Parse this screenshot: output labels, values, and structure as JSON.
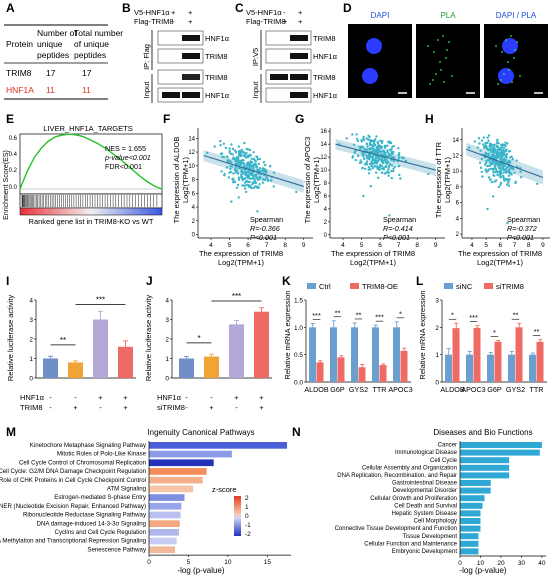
{
  "panels": {
    "A": {
      "letter": "A",
      "header": [
        "Protein",
        "Number of unique peptides",
        "Total number of unique peptides"
      ],
      "rows": [
        {
          "protein": "TRIM8",
          "unique": "17",
          "total": "17",
          "color": "#111111"
        },
        {
          "protein": "HNF1A",
          "unique": "11",
          "total": "11",
          "color": "#d9331f"
        }
      ]
    },
    "B": {
      "letter": "B",
      "conditions": [
        {
          "label": "V5-HNF1α",
          "values": [
            "+",
            "+"
          ]
        },
        {
          "label": "Flag-TRIM8",
          "values": [
            "-",
            "+"
          ]
        }
      ],
      "ip_label": "IP: Flag",
      "input_label": "Input",
      "bands": [
        "HNF1α",
        "TRIM8",
        "TRIM8",
        "HNF1α"
      ]
    },
    "C": {
      "letter": "C",
      "conditions": [
        {
          "label": "V5-HNF1α",
          "values": [
            "-",
            "+"
          ]
        },
        {
          "label": "Flag-TRIM8",
          "values": [
            "+",
            "+"
          ]
        }
      ],
      "ip_label": "IP:V5",
      "input_label": "Input",
      "bands": [
        "TRIM8",
        "HNF1α",
        "TRIM8",
        "HNF1α"
      ]
    },
    "D": {
      "letter": "D",
      "titles": [
        "DAPI",
        "PLA",
        "DAPI / PLA"
      ],
      "title_colors": [
        "#1a4fd8",
        "#1e9e2f",
        "#1a4fd8"
      ]
    },
    "E": {
      "letter": "E",
      "title": "LIVER_HNF1A_TARGETS",
      "stats": [
        "NES = 1.655",
        "p-value<0.001",
        "FDR<0.001"
      ],
      "ylabel": "Enrichment Score(ES)",
      "yticks": [
        "0.6",
        "0.4",
        "0.2",
        "0.0"
      ],
      "xlabel": "Ranked gene list in TRIM8-KO vs WT"
    },
    "F": {
      "letter": "F",
      "ylabel1": "The expression of ALDOB",
      "ylabel2": "Log2(TPM+1)",
      "xlabel1": "The expression of TRIM8",
      "xlabel2": "Log2(TPM+1)",
      "stats": [
        "Spearman",
        "R=-0.366",
        "P<0.001"
      ],
      "xticks": [
        "4",
        "5",
        "6",
        "7",
        "8",
        "9"
      ],
      "yticks": [
        "14",
        "12",
        "10",
        "8",
        "6",
        "4",
        "2",
        "0"
      ]
    },
    "G": {
      "letter": "G",
      "ylabel1": "The expression of APOC3",
      "ylabel2": "Log2(TPM+1)",
      "xlabel1": "The expression of TRIM8",
      "xlabel2": "Log2(TPM+1)",
      "stats": [
        "Spearman",
        "R=-0.414",
        "P<0.001"
      ],
      "xticks": [
        "4",
        "5",
        "6",
        "7",
        "8",
        "9"
      ],
      "yticks": [
        "16",
        "14",
        "12",
        "10",
        "8",
        "6",
        "4",
        "2",
        "0"
      ]
    },
    "H": {
      "letter": "H",
      "ylabel1": "The expression of TTR",
      "ylabel2": "Log2(TPM+1)",
      "xlabel1": "The expression of TRIM8",
      "xlabel2": "Log2(TPM+1)",
      "stats": [
        "Spearman",
        "R=-0.372",
        "P<0.001"
      ],
      "xticks": [
        "4",
        "5",
        "6",
        "7",
        "8",
        "9"
      ],
      "yticks": [
        "14",
        "12",
        "10",
        "8",
        "6",
        "4",
        "2"
      ]
    },
    "I": {
      "letter": "I",
      "ylabel": "Relative luciferase activity",
      "yticks": [
        "0",
        "1",
        "2",
        "3",
        "4"
      ],
      "row_labels": [
        "HNF1α",
        "TRIM8"
      ],
      "row_values": [
        [
          "-",
          "-",
          "+",
          "+"
        ],
        [
          "-",
          "+",
          "-",
          "+"
        ]
      ],
      "sig": [
        "**",
        "***"
      ]
    },
    "J": {
      "letter": "J",
      "ylabel": "Relative luciferase activity",
      "yticks": [
        "0",
        "1",
        "2",
        "3",
        "4"
      ],
      "row_labels": [
        "HNF1α",
        "siTRIM8"
      ],
      "row_values": [
        [
          "-",
          "-",
          "+",
          "+"
        ],
        [
          "-",
          "+",
          "-",
          "+"
        ]
      ],
      "sig": [
        "*",
        "***"
      ]
    },
    "K": {
      "letter": "K",
      "ylabel": "Relative mRNA expression",
      "yticks": [
        "0.0",
        "0.5",
        "1.0",
        "1.5"
      ],
      "legend": [
        "Ctrl",
        "TRIM8-OE"
      ],
      "sig": [
        "***",
        "**",
        "**",
        "***",
        "*"
      ]
    },
    "L": {
      "letter": "L",
      "ylabel": "Relative mRNA expression",
      "yticks": [
        "0",
        "1",
        "2",
        "3"
      ],
      "legend": [
        "siNC",
        "siTRIM8"
      ],
      "sig": [
        "*",
        "***",
        "*",
        "**",
        "**"
      ]
    },
    "M": {
      "letter": "M",
      "legend_title": "z-score",
      "legend_ticks": [
        "2",
        "1",
        "0",
        "-1",
        "-2"
      ]
    },
    "N": {
      "letter": "N"
    }
  },
  "chart_data": [
    {
      "panel": "E",
      "type": "line",
      "title": "LIVER_HNF1A_TARGETS",
      "ylabel": "Enrichment Score(ES)",
      "xlabel": "Ranked gene list in TRIM8-KO vs WT",
      "x": [
        0,
        0.05,
        0.1,
        0.15,
        0.2,
        0.25,
        0.3,
        0.35,
        0.4,
        0.45,
        0.5,
        0.55,
        0.6,
        0.65,
        0.7,
        0.75,
        0.8,
        0.85,
        0.9,
        0.95,
        1.0
      ],
      "y": [
        0.0,
        0.2,
        0.36,
        0.47,
        0.55,
        0.6,
        0.62,
        0.63,
        0.62,
        0.6,
        0.56,
        0.52,
        0.47,
        0.41,
        0.35,
        0.28,
        0.21,
        0.14,
        0.08,
        0.03,
        0.0
      ],
      "ylim": [
        -0.05,
        0.7
      ]
    },
    {
      "panel": "F",
      "type": "scatter",
      "xlabel": "The expression of TRIM8 Log2(TPM+1)",
      "ylabel": "The expression of ALDOB Log2(TPM+1)",
      "xlim": [
        3.3,
        9.5
      ],
      "ylim": [
        -0.5,
        15.5
      ],
      "fit": {
        "x": [
          3.6,
          9.0
        ],
        "y": [
          11.5,
          7.0
        ]
      },
      "x": [
        4.6,
        5.0,
        5.2,
        5.4,
        5.6,
        5.8,
        6.0,
        6.2,
        6.4,
        5.1,
        5.5,
        5.9,
        6.3,
        4.9,
        5.3,
        5.7,
        6.1,
        6.6,
        4.8,
        5.2,
        5.6,
        6.0,
        6.8,
        5.4,
        5.8,
        6.2,
        5.0,
        5.6,
        6.4,
        7.0,
        4.5,
        5.9,
        6.1,
        5.3,
        5.5,
        4.2,
        7.4,
        3.8,
        8.6,
        5.1,
        6.5
      ],
      "y": [
        11.8,
        12.5,
        11.0,
        10.2,
        12.0,
        9.8,
        10.5,
        9.0,
        8.6,
        13.1,
        12.8,
        11.2,
        10.0,
        10.8,
        9.5,
        8.8,
        12.3,
        9.2,
        12.6,
        7.6,
        11.4,
        8.2,
        8.0,
        6.8,
        13.3,
        11.0,
        9.0,
        10.4,
        7.5,
        8.4,
        13.6,
        6.2,
        11.6,
        12.2,
        5.4,
        12.8,
        9.0,
        11.9,
        6.2,
        4.8,
        3.4
      ]
    },
    {
      "panel": "G",
      "type": "scatter",
      "xlabel": "The expression of TRIM8 Log2(TPM+1)",
      "ylabel": "The expression of APOC3 Log2(TPM+1)",
      "xlim": [
        3.3,
        9.5
      ],
      "ylim": [
        -0.5,
        16.5
      ],
      "fit": {
        "x": [
          3.6,
          9.0
        ],
        "y": [
          14.0,
          10.0
        ]
      },
      "x": [
        4.6,
        5.0,
        5.2,
        5.4,
        5.6,
        5.8,
        6.0,
        6.2,
        6.4,
        5.1,
        5.5,
        5.9,
        6.3,
        4.9,
        5.3,
        5.7,
        6.1,
        6.6,
        4.8,
        5.2,
        5.6,
        6.0,
        6.8,
        5.4,
        5.8,
        6.2,
        5.0,
        5.6,
        6.4,
        7.0,
        4.5,
        5.9,
        6.1,
        5.3,
        5.5,
        4.2,
        7.4,
        3.8,
        8.6,
        5.1,
        6.5
      ],
      "y": [
        13.9,
        14.6,
        13.2,
        12.6,
        13.8,
        12.2,
        12.9,
        11.4,
        11.0,
        14.8,
        14.4,
        13.0,
        12.2,
        13.1,
        11.8,
        11.2,
        14.2,
        11.6,
        14.5,
        10.2,
        13.4,
        10.8,
        10.5,
        9.5,
        15.2,
        13.0,
        11.2,
        12.6,
        9.8,
        10.6,
        15.5,
        8.8,
        13.6,
        14.0,
        7.5,
        14.9,
        11.4,
        14.0,
        9.4,
        6.0,
        3.0
      ]
    },
    {
      "panel": "H",
      "type": "scatter",
      "xlabel": "The expression of TRIM8 Log2(TPM+1)",
      "ylabel": "The expression of TTR Log2(TPM+1)",
      "xlim": [
        3.3,
        9.5
      ],
      "ylim": [
        1.5,
        15.5
      ],
      "fit": {
        "x": [
          3.6,
          9.0
        ],
        "y": [
          12.8,
          9.2
        ]
      },
      "x": [
        4.6,
        5.0,
        5.2,
        5.4,
        5.6,
        5.8,
        6.0,
        6.2,
        6.4,
        5.1,
        5.5,
        5.9,
        6.3,
        4.9,
        5.3,
        5.7,
        6.1,
        6.6,
        4.8,
        5.2,
        5.6,
        6.0,
        6.8,
        5.4,
        5.8,
        6.2,
        5.0,
        5.6,
        6.4,
        7.0,
        4.5,
        5.9,
        6.1,
        5.3,
        5.5,
        4.2,
        7.4,
        3.8,
        8.6,
        5.1,
        6.5
      ],
      "y": [
        12.6,
        13.2,
        12.0,
        11.4,
        12.8,
        11.0,
        11.6,
        10.4,
        10.0,
        13.6,
        13.3,
        12.0,
        11.2,
        12.0,
        10.8,
        10.2,
        13.0,
        10.6,
        13.4,
        9.2,
        12.4,
        9.8,
        9.6,
        8.6,
        14.0,
        12.0,
        10.2,
        11.6,
        9.0,
        9.8,
        14.2,
        8.0,
        12.6,
        13.0,
        6.8,
        13.8,
        10.4,
        13.0,
        8.4,
        5.2,
        3.4
      ]
    },
    {
      "panel": "I",
      "type": "bar",
      "ylabel": "Relative luciferase activity",
      "ylim": [
        0,
        4
      ],
      "values": [
        1.0,
        0.8,
        3.0,
        1.6
      ],
      "errors": [
        0.12,
        0.08,
        0.42,
        0.3
      ],
      "colors": [
        "#6f8ec8",
        "#f2a336",
        "#b4a8d8",
        "#ee6a66"
      ]
    },
    {
      "panel": "J",
      "type": "bar",
      "ylabel": "Relative luciferase activity",
      "ylim": [
        0,
        4
      ],
      "values": [
        1.0,
        1.1,
        2.75,
        3.4
      ],
      "errors": [
        0.1,
        0.12,
        0.2,
        0.2
      ],
      "colors": [
        "#6f8ec8",
        "#f2a336",
        "#b4a8d8",
        "#ee6a66"
      ]
    },
    {
      "panel": "K",
      "type": "bar",
      "ylabel": "Relative mRNA expression",
      "ylim": [
        0,
        1.5
      ],
      "categories": [
        "ALDOB",
        "G6P",
        "GYS2",
        "TTR",
        "APOC3"
      ],
      "series": [
        {
          "name": "Ctrl",
          "color": "#6a9fcf",
          "values": [
            1.0,
            1.0,
            1.0,
            1.0,
            1.0
          ],
          "errors": [
            0.07,
            0.12,
            0.08,
            0.04,
            0.1
          ]
        },
        {
          "name": "TRIM8-OE",
          "color": "#ef6a62",
          "values": [
            0.36,
            0.45,
            0.27,
            0.31,
            0.57
          ],
          "errors": [
            0.03,
            0.03,
            0.05,
            0.02,
            0.05
          ]
        }
      ]
    },
    {
      "panel": "L",
      "type": "bar",
      "ylabel": "Relative mRNA expression",
      "ylim": [
        0,
        3
      ],
      "categories": [
        "ALDOB",
        "APOC3",
        "G6P",
        "GYS2",
        "TTR"
      ],
      "series": [
        {
          "name": "siNC",
          "color": "#6a9fcf",
          "values": [
            1.0,
            1.0,
            1.0,
            1.0,
            1.0
          ],
          "errors": [
            0.22,
            0.12,
            0.08,
            0.12,
            0.06
          ]
        },
        {
          "name": "siTRIM8",
          "color": "#ef6a62",
          "values": [
            1.97,
            1.98,
            1.47,
            2.0,
            1.47
          ],
          "errors": [
            0.18,
            0.08,
            0.05,
            0.15,
            0.08
          ]
        }
      ]
    },
    {
      "panel": "M",
      "type": "bar",
      "title": "Ingenuity Canonical Pathways",
      "xlabel": "-log (p-value)",
      "xlim": [
        0,
        18
      ],
      "xticks": [
        0,
        5,
        10,
        15
      ],
      "legend_title": "z-score",
      "categories": [
        "Kinetochore Metaphase Signaling Pathway",
        "Mitotic Roles of Polo-Like Kinase",
        "Cell Cycle Control of Chromosomal Replication",
        "Cell Cycle: G2/M DNA Damage Checkpoint Regulation",
        "Role of CHK Proteins in Cell Cycle Checkpoint Control",
        "ATM Signaling",
        "Estrogen-mediated S-phase Entry",
        "NER (Nucleotide Excision Repair, Enhanced Pathway)",
        "Ribonucleotide Reductase Signaling Pathway",
        "DNA damage-induced 14-3-3σ Signaling",
        "Cyclins and Cell Cycle Regulation",
        "DNA Methylation and Transcriptional Repression Signaling",
        "Senescence Pathway"
      ],
      "values": [
        17.5,
        10.5,
        8.2,
        7.3,
        6.8,
        5.6,
        4.5,
        4.1,
        4.0,
        3.9,
        3.8,
        3.5,
        3.3
      ],
      "colors": [
        "#4b5fd6",
        "#8b9be8",
        "#2233b8",
        "#f28c5a",
        "#f4b08a",
        "#f6c4a6",
        "#7f8de2",
        "#9aa6ea",
        "#b9c0f0",
        "#f3a882",
        "#b2b8ee",
        "#c9cdf4",
        "#f1b89a"
      ]
    },
    {
      "panel": "N",
      "type": "bar",
      "title": "Diseases and Bio Functions",
      "xlabel": "-log (p-value)",
      "xlim": [
        0,
        42
      ],
      "xticks": [
        0,
        10,
        20,
        30,
        40
      ],
      "color": "#2fa8d6",
      "categories": [
        "Cancer",
        "Immunological Disease",
        "Cell Cycle",
        "Cellular Assembly and Organization",
        "DNA Replication, Recombination, and Repair",
        "Gastrointestinal Disease",
        "Developmental Disorder",
        "Cellular Growth and Proliferation",
        "Cell Death and Survival",
        "Hepatic System Disease",
        "Cell Morphology",
        "Connective Tissue Development and Function",
        "Tissue Development",
        "Cellular Function and Maintenance",
        "Embryonic Development"
      ],
      "values": [
        40,
        39,
        24,
        24,
        24,
        15,
        15,
        12,
        11,
        10,
        10,
        10,
        9,
        9,
        9
      ]
    }
  ]
}
